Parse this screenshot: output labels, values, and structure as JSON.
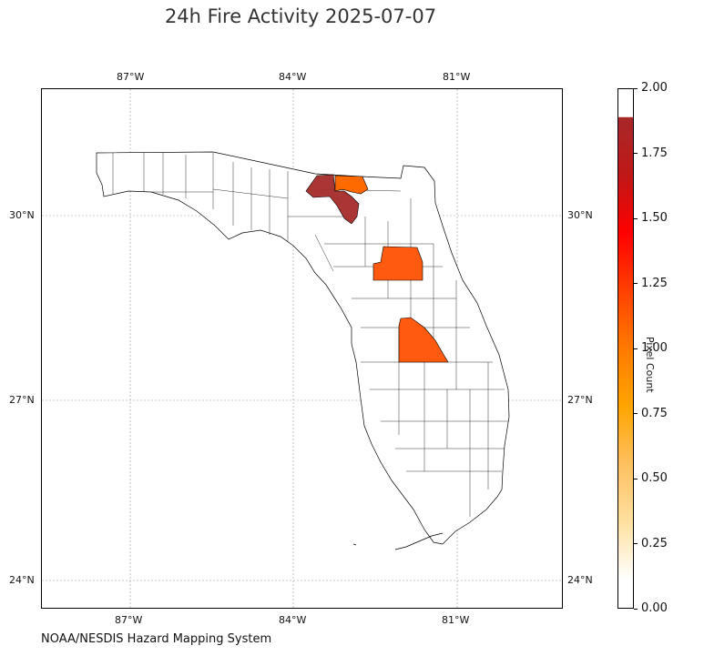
{
  "title": "24h Fire Activity 2025-07-07",
  "credit": "NOAA/NESDIS Hazard Mapping System",
  "longitude_ticks": [
    "87°W",
    "84°W",
    "81°W"
  ],
  "latitude_ticks": [
    "30°N",
    "27°N",
    "24°N"
  ],
  "colorbar": {
    "label": "Pixel Count",
    "ticks": [
      "0.00",
      "0.25",
      "0.50",
      "0.75",
      "1.00",
      "1.25",
      "1.50",
      "1.75",
      "2.00"
    ],
    "range": [
      0,
      2
    ],
    "colors": [
      "#ffffff",
      "#ffe0a0",
      "#ffb000",
      "#ff7a00",
      "#ff4000",
      "#ff0000",
      "#c01818",
      "#a82020"
    ]
  },
  "colors": {
    "high": "#a52a2a",
    "mid": "#ff5a10",
    "mid2": "#ff6a00"
  }
}
